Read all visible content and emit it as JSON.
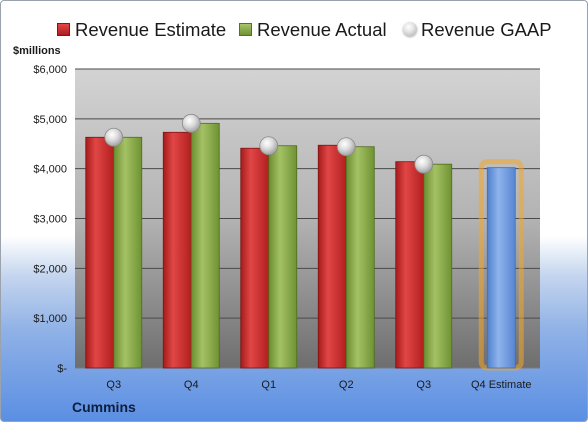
{
  "chart_data": {
    "type": "bar",
    "unit_label": "$millions",
    "footer_label": "Cummins",
    "categories": [
      "Q3",
      "Q4",
      "Q1",
      "Q2",
      "Q3",
      "Q4 Estimate"
    ],
    "series": [
      {
        "name": "Revenue Estimate",
        "values": [
          4630,
          4730,
          4410,
          4470,
          4140,
          null
        ],
        "color": "#c62828"
      },
      {
        "name": "Revenue Actual",
        "values": [
          4630,
          4910,
          4460,
          4440,
          4090,
          null
        ],
        "color": "#82a53e"
      },
      {
        "name": "Revenue GAAP",
        "values": [
          4630,
          4910,
          4460,
          4440,
          4090,
          null
        ],
        "color": "#c8c8c8"
      }
    ],
    "forecast": {
      "category": "Q4 Estimate",
      "value": 4020,
      "color": "#6f9be0",
      "highlight": "#f5a623"
    },
    "y_ticks": [
      "$-",
      "$1,000",
      "$2,000",
      "$3,000",
      "$4,000",
      "$5,000",
      "$6,000"
    ],
    "ylim": [
      0,
      6000
    ],
    "grid": true,
    "legend_position": "top"
  }
}
